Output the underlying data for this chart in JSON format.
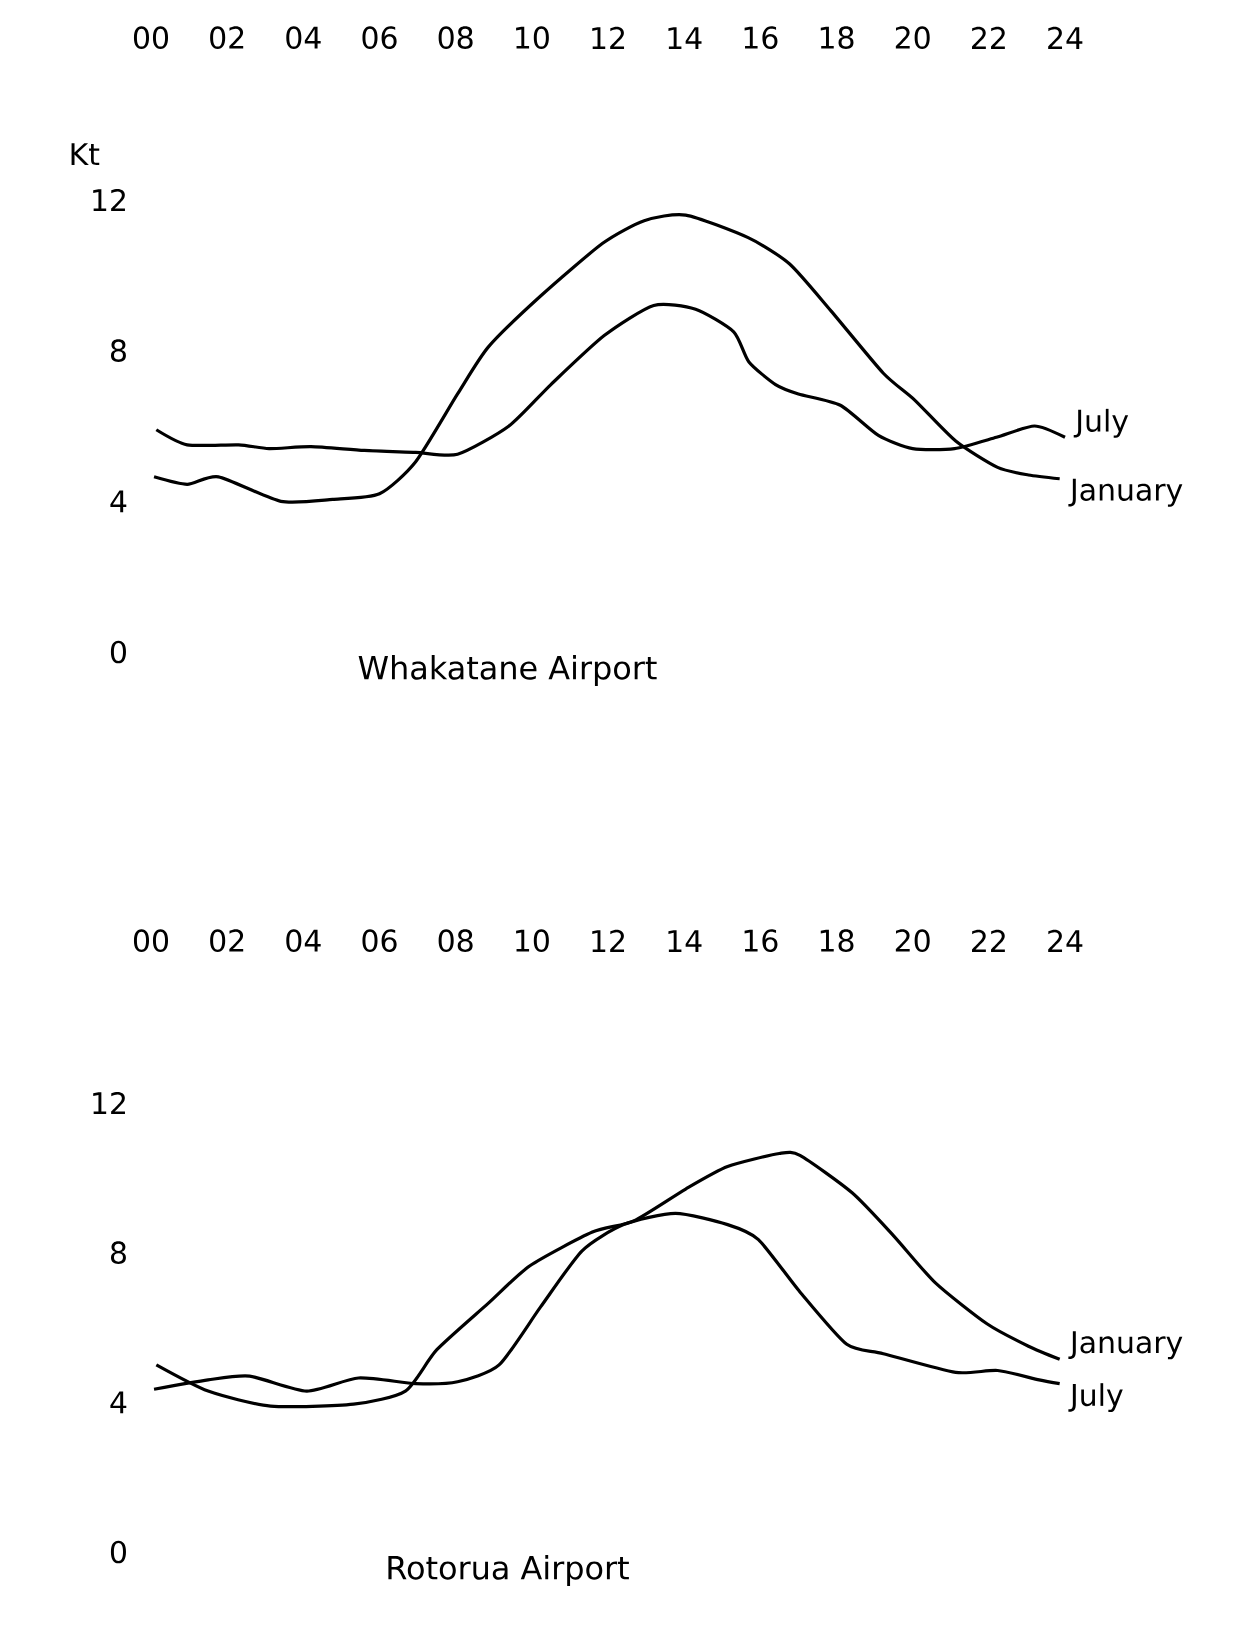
{
  "chart_data": [
    {
      "type": "line",
      "title": "Whakatane Airport",
      "ylabel": "Kt",
      "xlim": [
        0,
        24
      ],
      "ylim": [
        0,
        12
      ],
      "xticks": [
        {
          "value": 0,
          "label": "00"
        },
        {
          "value": 2,
          "label": "02"
        },
        {
          "value": 4,
          "label": "04"
        },
        {
          "value": 6,
          "label": "06"
        },
        {
          "value": 8,
          "label": "08"
        },
        {
          "value": 10,
          "label": "10"
        },
        {
          "value": 12,
          "label": "12"
        },
        {
          "value": 14,
          "label": "14"
        },
        {
          "value": 16,
          "label": "16"
        },
        {
          "value": 18,
          "label": "18"
        },
        {
          "value": 20,
          "label": "20"
        },
        {
          "value": 22,
          "label": "22"
        },
        {
          "value": 24,
          "label": "24"
        }
      ],
      "yticks": [
        0,
        4,
        8,
        12
      ],
      "marker": "none",
      "line_style": "solid",
      "legend": false,
      "grid": false,
      "series": [
        {
          "name": "July",
          "color": "#000000",
          "x": [
            0.14,
            0.95,
            2.3,
            3.1,
            4.2,
            5.6,
            6.95,
            8.05,
            9.4,
            10.5,
            11.9,
            13.2,
            14.3,
            15.3,
            15.7,
            16.4,
            17.0,
            18.1,
            19.1,
            20.0,
            21.1,
            22.2,
            23.2,
            24.0
          ],
          "values": [
            5.9,
            5.5,
            5.5,
            5.4,
            5.45,
            5.35,
            5.3,
            5.25,
            6.0,
            7.1,
            8.4,
            9.2,
            9.1,
            8.5,
            7.7,
            7.1,
            6.85,
            6.55,
            5.75,
            5.4,
            5.4,
            5.7,
            6.0,
            5.7
          ]
        },
        {
          "name": "January",
          "color": "#000000",
          "x": [
            0.08,
            0.95,
            1.77,
            3.41,
            4.77,
            6.0,
            6.95,
            8.05,
            8.86,
            10.23,
            11.86,
            12.95,
            14.04,
            15.68,
            16.77,
            17.86,
            19.23,
            20.04,
            21.13,
            22.23,
            23.04,
            23.86
          ],
          "values": [
            4.65,
            4.45,
            4.65,
            4.0,
            4.05,
            4.2,
            5.05,
            6.85,
            8.1,
            9.45,
            10.85,
            11.45,
            11.6,
            11.0,
            10.3,
            9.05,
            7.4,
            6.7,
            5.6,
            4.9,
            4.7,
            4.6
          ]
        }
      ]
    },
    {
      "type": "line",
      "title": "Rotorua Airport",
      "xlim": [
        0,
        24
      ],
      "ylim": [
        0,
        12
      ],
      "xticks": [
        {
          "value": 0,
          "label": "00"
        },
        {
          "value": 2,
          "label": "02"
        },
        {
          "value": 4,
          "label": "04"
        },
        {
          "value": 6,
          "label": "06"
        },
        {
          "value": 8,
          "label": "08"
        },
        {
          "value": 10,
          "label": "10"
        },
        {
          "value": 12,
          "label": "12"
        },
        {
          "value": 14,
          "label": "14"
        },
        {
          "value": 16,
          "label": "16"
        },
        {
          "value": 18,
          "label": "18"
        },
        {
          "value": 20,
          "label": "20"
        },
        {
          "value": 22,
          "label": "22"
        },
        {
          "value": 24,
          "label": "24"
        }
      ],
      "yticks": [
        0,
        4,
        8,
        12
      ],
      "marker": "none",
      "line_style": "solid",
      "legend": false,
      "grid": false,
      "series": [
        {
          "name": "January",
          "color": "#000000",
          "x": [
            0.14,
            1.5,
            3.14,
            5.32,
            6.68,
            7.5,
            8.86,
            9.95,
            11.59,
            12.68,
            14.04,
            15.14,
            16.5,
            17.04,
            18.41,
            19.5,
            20.59,
            21.95,
            23.04,
            23.86
          ],
          "values": [
            5.0,
            4.3,
            3.9,
            3.95,
            4.3,
            5.4,
            6.65,
            7.65,
            8.55,
            8.85,
            9.7,
            10.3,
            10.65,
            10.6,
            9.6,
            8.45,
            7.2,
            6.1,
            5.5,
            5.15
          ]
        },
        {
          "name": "July",
          "color": "#000000",
          "x": [
            0.08,
            1.5,
            2.59,
            4.09,
            5.45,
            6.95,
            8.05,
            9.14,
            10.23,
            11.32,
            12.41,
            13.77,
            15.14,
            15.95,
            17.04,
            18.27,
            19.23,
            21.13,
            22.23,
            23.32,
            23.86
          ],
          "values": [
            4.35,
            4.6,
            4.7,
            4.3,
            4.65,
            4.5,
            4.55,
            5.0,
            6.55,
            8.05,
            8.75,
            9.05,
            8.75,
            8.35,
            6.95,
            5.55,
            5.3,
            4.8,
            4.85,
            4.6,
            4.5
          ]
        }
      ]
    }
  ]
}
